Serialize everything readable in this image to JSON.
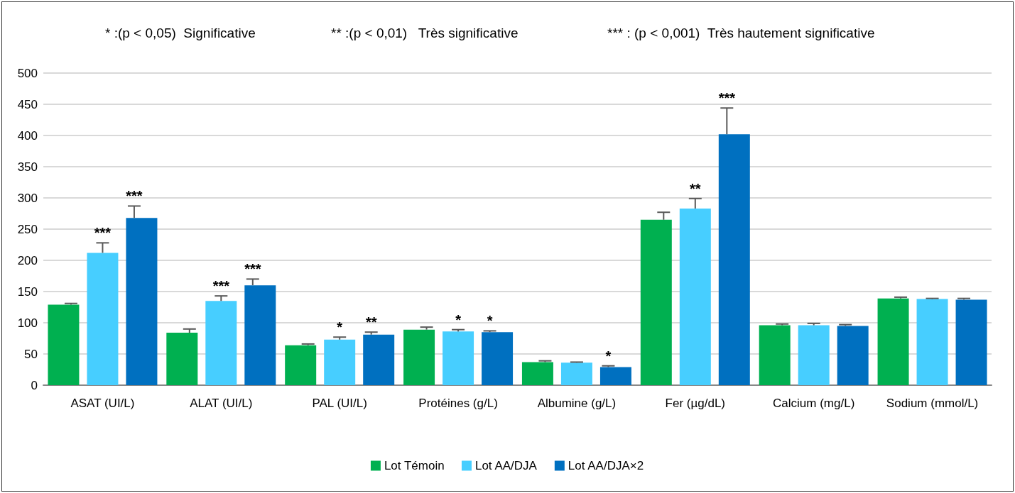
{
  "chart_data": {
    "type": "bar",
    "annotations": [
      "* :(p < 0,05)  Significative",
      "** :(p < 0,01)   Très significative",
      "*** : (p < 0,001)  Très hautement significative"
    ],
    "categories": [
      "ASAT (UI/L)",
      "ALAT (UI/L)",
      "PAL (UI/L)",
      "Protéines (g/L)",
      "Albumine (g/L)",
      "Fer (µg/dL)",
      "Calcium (mg/L)",
      "Sodium (mmol/L)"
    ],
    "series": [
      {
        "name": "Lot Témoin",
        "color": "#00b050",
        "values": [
          129,
          84,
          64,
          89,
          37,
          265,
          96,
          139
        ],
        "errors": [
          [
            129,
            131
          ],
          [
            84,
            90
          ],
          [
            64,
            66
          ],
          [
            89,
            93
          ],
          [
            37,
            39
          ],
          [
            265,
            277
          ],
          [
            96,
            98
          ],
          [
            139,
            141
          ]
        ],
        "value_labels": [
          null,
          null,
          null,
          null,
          null,
          null,
          null,
          null
        ]
      },
      {
        "name": "Lot AA/DJA",
        "color": "#47ceff",
        "values": [
          212,
          135,
          73,
          86,
          36,
          283,
          96,
          138
        ],
        "errors": [
          [
            212,
            228
          ],
          [
            135,
            143
          ],
          [
            73,
            77
          ],
          [
            86,
            89
          ],
          [
            36,
            37
          ],
          [
            283,
            299
          ],
          [
            96,
            99
          ],
          [
            138,
            139
          ]
        ],
        "value_labels": [
          "***",
          "***",
          "*",
          "*",
          null,
          "**",
          null,
          null
        ]
      },
      {
        "name": "Lot AA/DJA×2",
        "color": "#0070c0",
        "values": [
          268,
          160,
          81,
          85,
          29,
          402,
          95,
          137
        ],
        "errors": [
          [
            268,
            287
          ],
          [
            160,
            170
          ],
          [
            81,
            85
          ],
          [
            85,
            87
          ],
          [
            29,
            31
          ],
          [
            402,
            444
          ],
          [
            95,
            97
          ],
          [
            137,
            139
          ]
        ],
        "value_labels": [
          "***",
          "***",
          "**",
          "*",
          "*",
          "***",
          null,
          null
        ]
      }
    ],
    "ylim": [
      0,
      500
    ],
    "yticks": [
      0,
      50,
      100,
      150,
      200,
      250,
      300,
      350,
      400,
      450,
      500
    ],
    "grid": "y",
    "legend": "bottom"
  }
}
